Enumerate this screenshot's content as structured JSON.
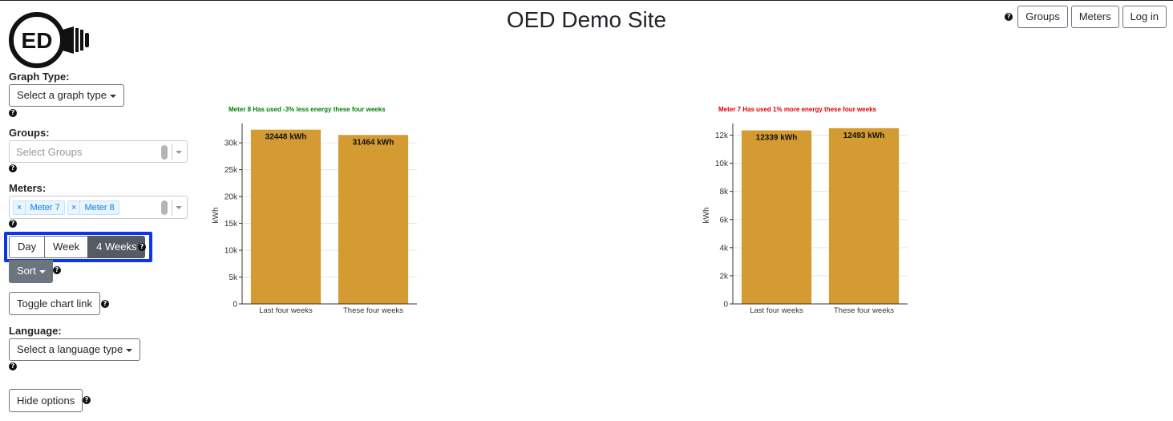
{
  "header": {
    "title": "OED Demo Site",
    "logo_text": "ED",
    "nav": {
      "groups_label": "Groups",
      "meters_label": "Meters",
      "login_label": "Log in"
    }
  },
  "sidebar": {
    "graph_type": {
      "label": "Graph Type:",
      "value": "Select a graph type"
    },
    "groups": {
      "label": "Groups:",
      "placeholder": "Select Groups"
    },
    "meters": {
      "label": "Meters:",
      "selected": [
        "Meter 7",
        "Meter 8"
      ]
    },
    "time_range": {
      "options": [
        "Day",
        "Week",
        "4 Weeks"
      ],
      "selected": "4 Weeks"
    },
    "sort_label": "Sort",
    "toggle_chart_link_label": "Toggle chart link",
    "language": {
      "label": "Language:",
      "value": "Select a language type"
    },
    "hide_options_label": "Hide options"
  },
  "icons": {
    "help": "question-circle-icon",
    "remove_tag": "x-icon",
    "dropdown": "caret-down-icon"
  },
  "colors": {
    "bar": "#d39b31",
    "less_energy": "#008000",
    "more_energy": "#e00000",
    "active_button": "#545b62",
    "highlight_border": "#0d36e8"
  },
  "chart_data": [
    {
      "type": "bar",
      "title": "Meter 8 Has used -3% less energy these four weeks",
      "title_color": "#008000",
      "categories": [
        "Last four weeks",
        "These four weeks"
      ],
      "values": [
        32448,
        31464
      ],
      "value_labels": [
        "32448 kWh",
        "31464 kWh"
      ],
      "ylabel": "kWh",
      "ylim": [
        0,
        33000
      ],
      "yticks": [
        0,
        5000,
        10000,
        15000,
        20000,
        25000,
        30000
      ],
      "ytick_labels": [
        "0",
        "5k",
        "10k",
        "15k",
        "20k",
        "25k",
        "30k"
      ],
      "grid": true
    },
    {
      "type": "bar",
      "title": "Meter 7 Has used 1% more energy these four weeks",
      "title_color": "#e00000",
      "categories": [
        "Last four weeks",
        "These four weeks"
      ],
      "values": [
        12339,
        12493
      ],
      "value_labels": [
        "12339 kWh",
        "12493 kWh"
      ],
      "ylabel": "kWh",
      "ylim": [
        0,
        12600
      ],
      "yticks": [
        0,
        2000,
        4000,
        6000,
        8000,
        10000,
        12000
      ],
      "ytick_labels": [
        "0",
        "2k",
        "4k",
        "6k",
        "8k",
        "10k",
        "12k"
      ],
      "grid": true
    }
  ]
}
